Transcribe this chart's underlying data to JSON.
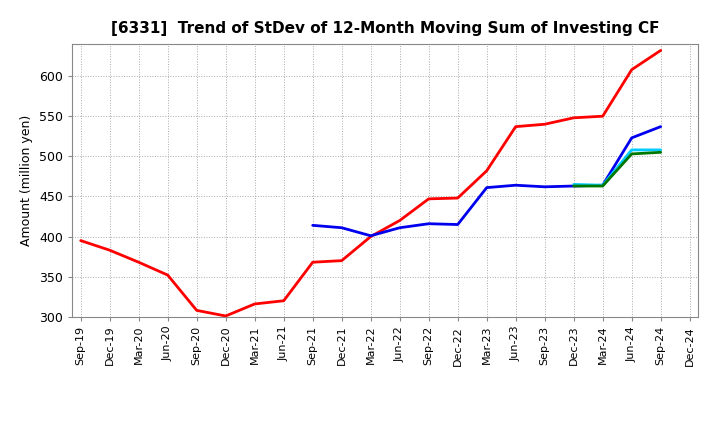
{
  "title": "[6331]  Trend of StDev of 12-Month Moving Sum of Investing CF",
  "ylabel": "Amount (million yen)",
  "ylim": [
    300,
    640
  ],
  "yticks": [
    300,
    350,
    400,
    450,
    500,
    550,
    600
  ],
  "background_color": "#ffffff",
  "grid_color": "#aaaaaa",
  "series": {
    "3 Years": {
      "color": "#ff0000",
      "data": [
        [
          "Sep-19",
          395
        ],
        [
          "Dec-19",
          383
        ],
        [
          "Mar-20",
          368
        ],
        [
          "Jun-20",
          352
        ],
        [
          "Sep-20",
          308
        ],
        [
          "Dec-20",
          301
        ],
        [
          "Mar-21",
          316
        ],
        [
          "Jun-21",
          320
        ],
        [
          "Sep-21",
          368
        ],
        [
          "Dec-21",
          370
        ],
        [
          "Mar-22",
          400
        ],
        [
          "Jun-22",
          420
        ],
        [
          "Sep-22",
          447
        ],
        [
          "Dec-22",
          448
        ],
        [
          "Mar-23",
          482
        ],
        [
          "Jun-23",
          537
        ],
        [
          "Sep-23",
          540
        ],
        [
          "Dec-23",
          548
        ],
        [
          "Mar-24",
          550
        ],
        [
          "Jun-24",
          608
        ],
        [
          "Sep-24",
          632
        ]
      ]
    },
    "5 Years": {
      "color": "#0000ee",
      "data": [
        [
          "Sep-21",
          414
        ],
        [
          "Dec-21",
          411
        ],
        [
          "Mar-22",
          401
        ],
        [
          "Jun-22",
          411
        ],
        [
          "Sep-22",
          416
        ],
        [
          "Dec-22",
          415
        ],
        [
          "Mar-23",
          461
        ],
        [
          "Jun-23",
          464
        ],
        [
          "Sep-23",
          462
        ],
        [
          "Dec-23",
          463
        ],
        [
          "Mar-24",
          464
        ],
        [
          "Jun-24",
          523
        ],
        [
          "Sep-24",
          537
        ]
      ]
    },
    "7 Years": {
      "color": "#00ccff",
      "data": [
        [
          "Dec-23",
          465
        ],
        [
          "Mar-24",
          464
        ],
        [
          "Jun-24",
          508
        ],
        [
          "Sep-24",
          508
        ]
      ]
    },
    "10 Years": {
      "color": "#007700",
      "data": [
        [
          "Dec-23",
          463
        ],
        [
          "Mar-24",
          463
        ],
        [
          "Jun-24",
          503
        ],
        [
          "Sep-24",
          505
        ]
      ]
    }
  },
  "xtick_labels": [
    "Sep-19",
    "Dec-19",
    "Mar-20",
    "Jun-20",
    "Sep-20",
    "Dec-20",
    "Mar-21",
    "Jun-21",
    "Sep-21",
    "Dec-21",
    "Mar-22",
    "Jun-22",
    "Sep-22",
    "Dec-22",
    "Mar-23",
    "Jun-23",
    "Sep-23",
    "Dec-23",
    "Mar-24",
    "Jun-24",
    "Sep-24",
    "Dec-24"
  ]
}
